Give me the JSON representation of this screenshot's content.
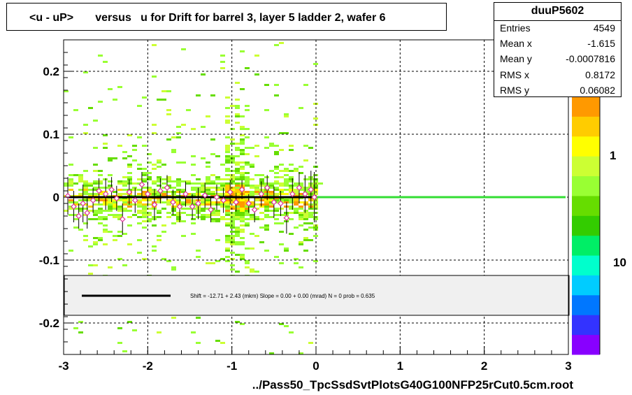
{
  "title": "<u - uP>       versus   u for Drift for barrel 3, layer 5 ladder 2, wafer 6",
  "stats": {
    "name": "duuP5602",
    "rows": [
      {
        "key": "Entries",
        "value": "4549"
      },
      {
        "key": "Mean x",
        "value": "-1.615"
      },
      {
        "key": "Mean y",
        "value": "-0.0007816"
      },
      {
        "key": "RMS x",
        "value": "0.8172"
      },
      {
        "key": "RMS y",
        "value": "0.06082"
      }
    ]
  },
  "fit_text": "Shift =    -12.71 + 2.43 (mkm) Slope =     0.00 + 0.00 (mrad)  N = 0 prob = 0.635",
  "colors": {
    "fit_line": "#000000",
    "extension_line": "#33dd33",
    "marker": "#dd3399",
    "palette": [
      "#8800ff",
      "#3333ff",
      "#0077ff",
      "#00ccff",
      "#00ffcc",
      "#00ee66",
      "#33cc00",
      "#66dd00",
      "#99ff33",
      "#ccff33",
      "#ffff00",
      "#ffcc00",
      "#ff9900"
    ]
  },
  "chart_data": {
    "type": "scatter",
    "xlabel": "../Pass50_TpcSsdSvtPlotsG40G100NFP25rCut0.5cm.root",
    "xlim": [
      -3,
      3
    ],
    "ylim": [
      -0.25,
      0.25
    ],
    "x_ticks": [
      -3,
      -2,
      -1,
      0,
      1,
      2,
      3
    ],
    "y_ticks": [
      -0.2,
      -0.1,
      0,
      0.1,
      0.2
    ],
    "y_tick_labels": [
      "-0.2",
      "-0.1",
      "0",
      "0.1",
      "0.2"
    ],
    "x_tick_labels": [
      "-3",
      "-2",
      "-1",
      "0",
      "1",
      "2",
      "3"
    ],
    "grid": true,
    "colorbar_labels": [
      "1",
      "10"
    ],
    "fit_line_y": 0.0,
    "profile_points": [
      {
        "x": -2.95,
        "y": 0.002,
        "err": 0.03
      },
      {
        "x": -2.88,
        "y": -0.015,
        "err": 0.025
      },
      {
        "x": -2.82,
        "y": -0.03,
        "err": 0.02
      },
      {
        "x": -2.77,
        "y": -0.01,
        "err": 0.03
      },
      {
        "x": -2.72,
        "y": -0.025,
        "err": 0.025
      },
      {
        "x": -2.65,
        "y": -0.005,
        "err": 0.02
      },
      {
        "x": -2.58,
        "y": 0.01,
        "err": 0.02
      },
      {
        "x": -2.5,
        "y": 0.005,
        "err": 0.025
      },
      {
        "x": -2.43,
        "y": 0.012,
        "err": 0.02
      },
      {
        "x": -2.37,
        "y": -0.002,
        "err": 0.02
      },
      {
        "x": -2.3,
        "y": -0.035,
        "err": 0.025
      },
      {
        "x": -2.22,
        "y": 0.008,
        "err": 0.02
      },
      {
        "x": -2.15,
        "y": -0.005,
        "err": 0.02
      },
      {
        "x": -2.07,
        "y": 0.02,
        "err": 0.02
      },
      {
        "x": -2.0,
        "y": 0.005,
        "err": 0.02
      },
      {
        "x": -1.92,
        "y": -0.012,
        "err": 0.025
      },
      {
        "x": -1.85,
        "y": 0.01,
        "err": 0.02
      },
      {
        "x": -1.77,
        "y": 0.015,
        "err": 0.02
      },
      {
        "x": -1.7,
        "y": -0.008,
        "err": 0.02
      },
      {
        "x": -1.62,
        "y": -0.015,
        "err": 0.025
      },
      {
        "x": -1.55,
        "y": 0.005,
        "err": 0.02
      },
      {
        "x": -1.47,
        "y": -0.015,
        "err": 0.02
      },
      {
        "x": -1.4,
        "y": -0.01,
        "err": 0.025
      },
      {
        "x": -1.32,
        "y": 0.003,
        "err": 0.02
      },
      {
        "x": -1.25,
        "y": -0.02,
        "err": 0.02
      },
      {
        "x": -1.18,
        "y": 0.0,
        "err": 0.02
      },
      {
        "x": -1.1,
        "y": -0.005,
        "err": 0.02
      },
      {
        "x": -1.02,
        "y": 0.008,
        "err": 0.02
      },
      {
        "x": -0.95,
        "y": -0.008,
        "err": 0.015
      },
      {
        "x": -0.88,
        "y": 0.012,
        "err": 0.015
      },
      {
        "x": -0.8,
        "y": -0.01,
        "err": 0.015
      },
      {
        "x": -0.73,
        "y": -0.02,
        "err": 0.02
      },
      {
        "x": -0.65,
        "y": 0.005,
        "err": 0.02
      },
      {
        "x": -0.58,
        "y": 0.015,
        "err": 0.02
      },
      {
        "x": -0.5,
        "y": -0.008,
        "err": 0.025
      },
      {
        "x": -0.42,
        "y": -0.01,
        "err": 0.02
      },
      {
        "x": -0.35,
        "y": -0.033,
        "err": 0.025
      },
      {
        "x": -0.28,
        "y": 0.005,
        "err": 0.025
      },
      {
        "x": -0.2,
        "y": 0.015,
        "err": 0.025
      },
      {
        "x": -0.13,
        "y": 0.005,
        "err": 0.03
      },
      {
        "x": -0.06,
        "y": 0.012,
        "err": 0.03
      },
      {
        "x": -0.02,
        "y": 0.0,
        "err": 0.04
      }
    ]
  }
}
